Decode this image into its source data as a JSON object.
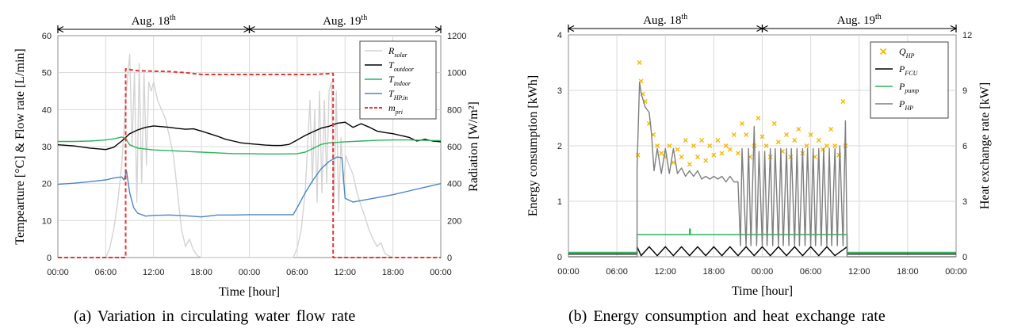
{
  "chart_data": [
    {
      "type": "line",
      "caption": "(a) Variation in circulating water flow rate",
      "xlabel": "Time [hour]",
      "ylabel_left": "Tempearture [°C] & Flow rate [L/min]",
      "ylabel_right": "Radiation [W/m²]",
      "ylim_left": [
        0,
        60
      ],
      "ylim_right": [
        0,
        1200
      ],
      "yticks_left": [
        "0",
        "10",
        "20",
        "30",
        "40",
        "50",
        "60"
      ],
      "yticks_right": [
        "0",
        "200",
        "400",
        "600",
        "800",
        "1000",
        "1200"
      ],
      "xticks": [
        "00:00",
        "06:00",
        "12:00",
        "18:00",
        "00:00",
        "06:00",
        "12:00",
        "18:00",
        "00:00"
      ],
      "x_range_hours": [
        0,
        48
      ],
      "days": [
        {
          "label": "Aug. 18",
          "sup": "th",
          "start_hour": 0,
          "end_hour": 24
        },
        {
          "label": "Aug. 19",
          "sup": "th",
          "start_hour": 24,
          "end_hour": 48
        }
      ],
      "grid": true,
      "legend_position": "top-right",
      "series": [
        {
          "name": "R_solar",
          "legend_main": "R",
          "legend_sub": "solar",
          "axis": "right",
          "color": "#d4d4d4",
          "x": [
            0,
            6,
            6.5,
            7,
            7.5,
            8,
            8.3,
            8.6,
            9,
            9.3,
            9.6,
            9.9,
            10.2,
            10.5,
            10.8,
            11.1,
            11.4,
            11.7,
            12,
            12.5,
            13,
            13.5,
            14,
            14.5,
            15,
            15.5,
            16,
            16.5,
            17,
            17.5,
            18,
            24,
            29.5,
            30,
            30.5,
            31,
            31.3,
            31.6,
            31.9,
            32.2,
            32.5,
            32.8,
            33.1,
            33.4,
            33.7,
            34,
            34.3,
            34.6,
            34.9,
            35.2,
            35.5,
            35.8,
            36.1,
            36.5,
            37,
            37.5,
            38,
            38.5,
            39,
            39.5,
            40,
            40.5,
            41,
            41.5,
            42,
            48
          ],
          "y": [
            0,
            0,
            50,
            150,
            300,
            500,
            700,
            900,
            1100,
            600,
            1000,
            300,
            1050,
            400,
            1000,
            500,
            950,
            900,
            950,
            850,
            800,
            750,
            650,
            550,
            350,
            150,
            60,
            100,
            40,
            10,
            0,
            0,
            0,
            50,
            150,
            350,
            600,
            850,
            400,
            800,
            300,
            900,
            350,
            850,
            400,
            900,
            950,
            300,
            900,
            250,
            650,
            400,
            550,
            500,
            450,
            350,
            280,
            220,
            150,
            100,
            60,
            80,
            20,
            10,
            0,
            0
          ]
        },
        {
          "name": "T_outdoor",
          "legend_main": "T",
          "legend_sub": "outdoor",
          "axis": "left",
          "color": "#000000",
          "x": [
            0,
            2,
            4,
            6,
            7,
            8,
            9,
            10,
            11,
            12,
            13,
            14,
            15,
            16,
            17,
            18,
            19,
            20,
            21,
            22,
            23,
            24,
            25,
            26,
            27,
            28,
            29,
            30,
            31,
            32,
            33,
            34,
            35,
            36,
            37,
            38,
            39,
            40,
            41,
            42,
            43,
            44,
            45,
            46,
            47,
            48
          ],
          "y": [
            30.5,
            30.2,
            29.6,
            29.2,
            29.8,
            31.5,
            33.5,
            34.5,
            35.2,
            35.6,
            35.4,
            35.2,
            34.9,
            34.7,
            34.8,
            34.2,
            33.5,
            32.8,
            32.0,
            31.5,
            31.0,
            30.8,
            30.6,
            30.4,
            30.3,
            30.3,
            30.6,
            31.8,
            33.0,
            34.0,
            35.0,
            35.5,
            36.3,
            36.6,
            35.2,
            36.2,
            35.3,
            34.2,
            33.8,
            33.5,
            33.0,
            32.5,
            31.5,
            32.0,
            31.5,
            31.3
          ]
        },
        {
          "name": "T_indoor",
          "legend_main": "T",
          "legend_sub": "indoor",
          "axis": "left",
          "color": "#2bb35c",
          "x": [
            0,
            2,
            4,
            6,
            7,
            8,
            8.5,
            9,
            10,
            12,
            14,
            16,
            18,
            20,
            22,
            24,
            26,
            28,
            30,
            31,
            32,
            33,
            34,
            36,
            38,
            40,
            42,
            44,
            46,
            48
          ],
          "y": [
            31.4,
            31.4,
            31.5,
            31.8,
            32.1,
            32.6,
            32.2,
            30.5,
            29.6,
            29.1,
            28.9,
            28.7,
            28.5,
            28.3,
            28.1,
            28.1,
            28.0,
            28.0,
            28.1,
            28.5,
            29.5,
            30.6,
            31.0,
            31.3,
            31.5,
            31.7,
            31.8,
            31.8,
            31.7,
            31.6
          ]
        },
        {
          "name": "T_HP.in",
          "legend_main": "T",
          "legend_sub": "HP.in",
          "axis": "left",
          "color": "#4a86c5",
          "x": [
            0,
            2,
            4,
            6,
            7,
            8,
            8.3,
            8.6,
            9,
            9.5,
            10,
            11,
            12,
            14,
            16,
            18,
            20,
            22,
            24,
            26,
            28,
            29.5,
            30,
            31,
            32,
            33,
            34,
            35,
            35.6,
            36,
            37,
            38,
            40,
            42,
            44,
            46,
            48
          ],
          "y": [
            19.8,
            20.1,
            20.5,
            21.0,
            21.5,
            21.8,
            21.0,
            23.5,
            17.5,
            13.5,
            12.0,
            11.2,
            11.4,
            11.5,
            11.3,
            11.0,
            11.5,
            11.5,
            11.6,
            11.6,
            11.6,
            11.6,
            13.5,
            17.5,
            21.0,
            24.0,
            26.0,
            27.2,
            27.0,
            16.0,
            15.0,
            15.4,
            16.2,
            17.0,
            18.0,
            19.0,
            20.0
          ]
        },
        {
          "name": "m_pri",
          "legend_main": "m",
          "legend_sub": "pri",
          "axis": "left",
          "color": "#e53535",
          "dashed": true,
          "x": [
            0,
            8.5,
            8.5,
            10,
            12,
            14,
            16,
            18,
            20,
            22,
            24,
            26,
            28,
            30,
            32,
            34.5,
            34.5,
            48
          ],
          "y": [
            0,
            0,
            51,
            50.5,
            50.4,
            50.3,
            50.0,
            49.5,
            49.5,
            49.5,
            49.5,
            49.5,
            49.5,
            49.5,
            49.5,
            49.8,
            0,
            0
          ]
        }
      ]
    },
    {
      "type": "line",
      "caption": "(b) Energy consumption and heat exchange rate",
      "xlabel": "Time [hour]",
      "ylabel_left": "Energy consumption [kWh]",
      "ylabel_right": "Heat exchange rate [kW]",
      "ylim_left": [
        0,
        4
      ],
      "ylim_right": [
        0,
        12
      ],
      "yticks_left": [
        "0",
        "1",
        "2",
        "3",
        "4"
      ],
      "yticks_right": [
        "0",
        "3",
        "6",
        "9",
        "12"
      ],
      "xticks": [
        "00:00",
        "06:00",
        "12:00",
        "18:00",
        "00:00",
        "06:00",
        "12:00",
        "18:00",
        "00:00"
      ],
      "x_range_hours": [
        0,
        48
      ],
      "days": [
        {
          "label": "Aug. 18",
          "sup": "th",
          "start_hour": 0,
          "end_hour": 24
        },
        {
          "label": "Aug. 19",
          "sup": "th",
          "start_hour": 24,
          "end_hour": 48
        }
      ],
      "grid": true,
      "legend_position": "top-right",
      "series": [
        {
          "name": "Q_HP",
          "legend_main": "Q",
          "legend_sub": "HP",
          "type": "scatter",
          "marker": "x",
          "axis": "right",
          "color": "#f5b800",
          "x": [
            8.6,
            8.8,
            9,
            9.2,
            9.5,
            10,
            10.5,
            11,
            11.5,
            12,
            12.5,
            13,
            13.5,
            14,
            14.5,
            15,
            15.5,
            16,
            16.5,
            17,
            17.5,
            18,
            18.5,
            19,
            19.5,
            20,
            20.5,
            21,
            21.5,
            22,
            22.5,
            23,
            23.5,
            24,
            24.5,
            25,
            25.5,
            26,
            26.5,
            27,
            27.5,
            28,
            28.5,
            29,
            29.5,
            30,
            30.5,
            31,
            31.5,
            32,
            32.5,
            33,
            33.5,
            34,
            34.3
          ],
          "y": [
            5.5,
            10.5,
            9.5,
            8.8,
            8.4,
            7.2,
            6.6,
            6.0,
            5.6,
            5.4,
            6.0,
            5.1,
            5.8,
            5.4,
            6.3,
            5.0,
            6.0,
            5.4,
            6.3,
            5.2,
            6.0,
            5.5,
            6.3,
            5.6,
            6.0,
            5.8,
            6.6,
            5.6,
            7.2,
            6.6,
            5.4,
            6.0,
            7.5,
            6.5,
            6.0,
            5.4,
            7.2,
            6.2,
            5.7,
            6.6,
            5.4,
            6.3,
            6.9,
            5.6,
            6.0,
            6.6,
            5.4,
            6.3,
            5.8,
            6.0,
            6.9,
            6.0,
            5.5,
            8.4,
            6.0
          ]
        },
        {
          "name": "P_FCU",
          "legend_main": "P",
          "legend_sub": "FCU",
          "axis": "left",
          "color": "#000000",
          "x": [
            0,
            8.5,
            8.5,
            9,
            10,
            11,
            12,
            13,
            14,
            15,
            16,
            17,
            18,
            19,
            20,
            21,
            22,
            23,
            24,
            25,
            26,
            27,
            28,
            29,
            30,
            31,
            32,
            33,
            34.5,
            34.5,
            48
          ],
          "y": [
            0.05,
            0.05,
            0.18,
            0.02,
            0.18,
            0.02,
            0.18,
            0.02,
            0.18,
            0.02,
            0.18,
            0.02,
            0.18,
            0.02,
            0.18,
            0.02,
            0.18,
            0.02,
            0.18,
            0.02,
            0.18,
            0.02,
            0.18,
            0.02,
            0.18,
            0.02,
            0.18,
            0.02,
            0.18,
            0.05,
            0.05
          ]
        },
        {
          "name": "P_pump",
          "legend_main": "P",
          "legend_sub": "pump",
          "axis": "left",
          "color": "#2bb35c",
          "x": [
            0,
            8.5,
            8.5,
            15,
            15,
            15.1,
            15.1,
            34.5,
            34.5,
            48
          ],
          "y": [
            0.08,
            0.08,
            0.4,
            0.4,
            0.5,
            0.5,
            0.4,
            0.4,
            0.08,
            0.08
          ]
        },
        {
          "name": "P_HP",
          "legend_main": "P",
          "legend_sub": "HP",
          "axis": "left",
          "color": "#7f7f7f",
          "x": [
            0,
            8.5,
            8.5,
            8.8,
            9,
            9.5,
            10,
            10.3,
            10.6,
            11,
            11.5,
            12,
            12.5,
            13,
            13.5,
            14,
            14.5,
            15,
            15.5,
            16,
            16.5,
            17,
            17.5,
            18,
            18.5,
            19,
            19.5,
            20,
            20.5,
            21,
            21.3,
            21.5,
            22,
            22.3,
            22.6,
            23,
            23.3,
            23.6,
            24,
            24.3,
            24.6,
            25,
            25.3,
            25.6,
            26,
            26.3,
            26.6,
            27,
            27.3,
            27.6,
            28,
            28.3,
            28.6,
            29,
            29.3,
            29.6,
            30,
            30.3,
            30.6,
            31,
            31.3,
            31.6,
            32,
            32.3,
            32.6,
            33,
            33.3,
            33.6,
            34,
            34.3,
            34.5,
            34.5,
            48
          ],
          "y": [
            0,
            0,
            1.6,
            3.15,
            2.95,
            2.7,
            2.6,
            2.2,
            1.55,
            1.95,
            1.5,
            1.95,
            1.5,
            1.95,
            1.5,
            1.6,
            1.45,
            1.55,
            1.45,
            1.55,
            1.4,
            1.45,
            1.4,
            1.45,
            1.4,
            1.45,
            1.35,
            1.45,
            1.35,
            1.35,
            0.2,
            1.95,
            0.2,
            1.95,
            0.2,
            2.35,
            0.2,
            1.9,
            0.2,
            1.9,
            0.2,
            1.95,
            0.2,
            1.95,
            0.2,
            1.95,
            0.2,
            1.95,
            0.2,
            1.95,
            0.2,
            1.95,
            0.2,
            1.95,
            0.2,
            1.95,
            0.2,
            1.95,
            0.2,
            1.95,
            0.2,
            1.95,
            0.2,
            1.95,
            0.2,
            1.95,
            0.2,
            2.0,
            0.2,
            2.45,
            0.2,
            0,
            0
          ]
        }
      ]
    }
  ]
}
